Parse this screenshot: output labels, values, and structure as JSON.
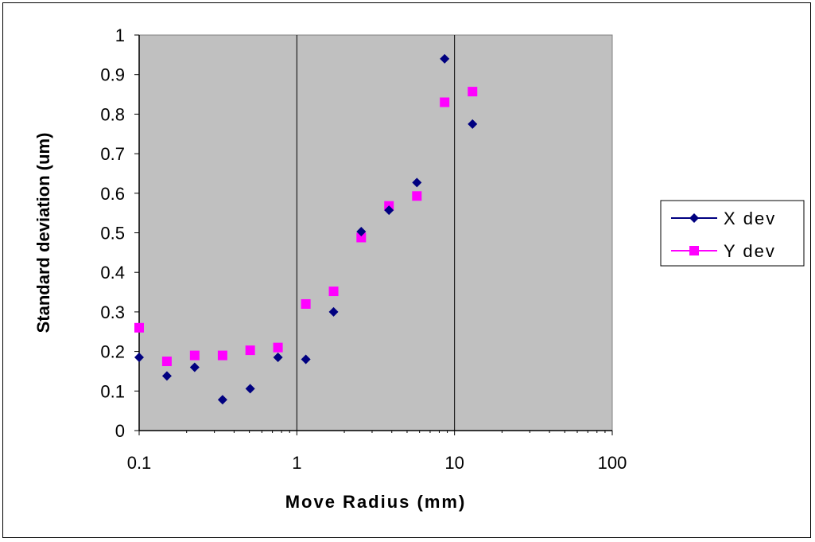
{
  "chart_data": {
    "type": "scatter",
    "xscale": "log",
    "xlim": [
      0.1,
      100
    ],
    "ylim": [
      0,
      1
    ],
    "xlabel": "Move Radius (mm)",
    "ylabel": "Standard deviation (um)",
    "x_ticks": [
      "0.1",
      "1",
      "10",
      "100"
    ],
    "y_ticks": [
      "0",
      "0.1",
      "0.2",
      "0.3",
      "0.4",
      "0.5",
      "0.6",
      "0.7",
      "0.8",
      "0.9",
      "1"
    ],
    "plot_background": "#c0c0c0",
    "gridlines": "vertical major only",
    "legend_position": "right",
    "series": [
      {
        "name": "X dev",
        "marker": "diamond",
        "color": "#000080",
        "points": [
          [
            0.1,
            0.185
          ],
          [
            0.15,
            0.138
          ],
          [
            0.225,
            0.16
          ],
          [
            0.338,
            0.078
          ],
          [
            0.506,
            0.106
          ],
          [
            0.759,
            0.185
          ],
          [
            1.14,
            0.18
          ],
          [
            1.71,
            0.3
          ],
          [
            2.56,
            0.503
          ],
          [
            3.84,
            0.557
          ],
          [
            5.77,
            0.627
          ],
          [
            8.65,
            0.94
          ],
          [
            13.0,
            0.775
          ]
        ]
      },
      {
        "name": "Y dev",
        "marker": "square",
        "color": "#ff00ff",
        "points": [
          [
            0.1,
            0.26
          ],
          [
            0.15,
            0.175
          ],
          [
            0.225,
            0.19
          ],
          [
            0.338,
            0.19
          ],
          [
            0.506,
            0.203
          ],
          [
            0.759,
            0.21
          ],
          [
            1.14,
            0.32
          ],
          [
            1.71,
            0.352
          ],
          [
            2.56,
            0.488
          ],
          [
            3.84,
            0.568
          ],
          [
            5.77,
            0.593
          ],
          [
            8.65,
            0.83
          ],
          [
            13.0,
            0.857
          ]
        ]
      }
    ]
  }
}
